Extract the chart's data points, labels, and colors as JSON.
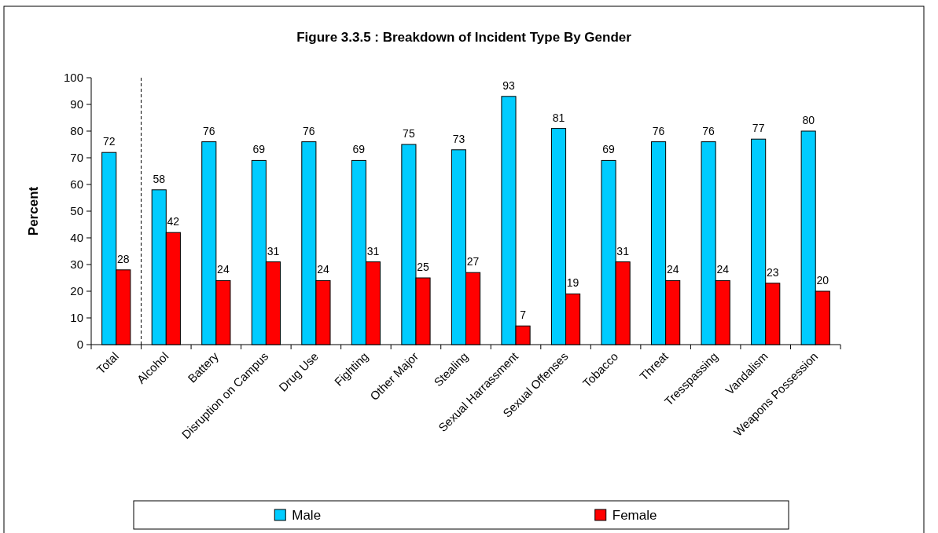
{
  "chart_data": {
    "type": "bar",
    "title": "Figure 3.3.5 : Breakdown of Incident Type By Gender",
    "ylabel": "Percent",
    "categories": [
      "Total",
      "Alcohol",
      "Battery",
      "Disruption on Campus",
      "Drug Use",
      "Fighting",
      "Other Major",
      "Stealing",
      "Sexual Harrassment",
      "Sexual Offenses",
      "Tobacco",
      "Threat",
      "Tresspassing",
      "Vandalism",
      "Weapons Possession"
    ],
    "series": [
      {
        "name": "Male",
        "color": "#00ccff",
        "values": [
          72,
          58,
          76,
          69,
          76,
          69,
          75,
          73,
          93,
          81,
          69,
          76,
          76,
          77,
          80
        ]
      },
      {
        "name": "Female",
        "color": "#ff0000",
        "values": [
          28,
          42,
          24,
          31,
          24,
          31,
          25,
          27,
          7,
          19,
          31,
          24,
          24,
          23,
          20
        ]
      }
    ],
    "ylim": [
      0,
      100
    ],
    "yticks": [
      0,
      10,
      20,
      30,
      40,
      50,
      60,
      70,
      80,
      90,
      100
    ],
    "data_labels": true,
    "legend": "bottom"
  }
}
